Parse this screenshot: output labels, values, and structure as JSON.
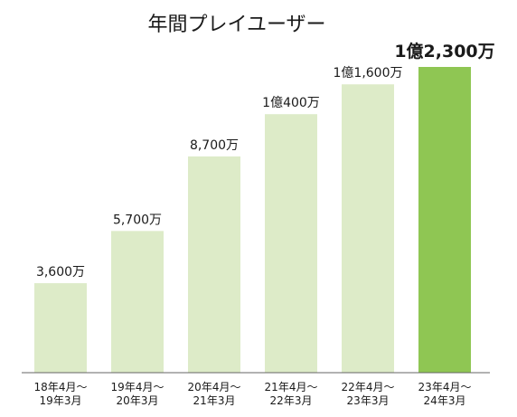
{
  "chart_data": {
    "type": "bar",
    "title": "年間プレイユーザー",
    "xlabel": "",
    "ylabel": "",
    "unit": "万",
    "ylim": [
      0,
      12300
    ],
    "categories": [
      [
        "18年4月～",
        "19年3月"
      ],
      [
        "19年4月～",
        "20年3月"
      ],
      [
        "20年4月～",
        "21年3月"
      ],
      [
        "21年4月～",
        "22年3月"
      ],
      [
        "22年4月～",
        "23年3月"
      ],
      [
        "23年4月～",
        "24年3月"
      ]
    ],
    "values": [
      3600,
      5700,
      8700,
      10400,
      11600,
      12300
    ],
    "data_labels": [
      "3,600万",
      "5,700万",
      "8,700万",
      "1億400万",
      "1億1,600万",
      "1億2,300万"
    ],
    "highlight_index": 5,
    "colors": {
      "bar": "#ddebc8",
      "highlight": "#8fc653",
      "axis": "#666666"
    },
    "grid": false,
    "legend": "none"
  }
}
